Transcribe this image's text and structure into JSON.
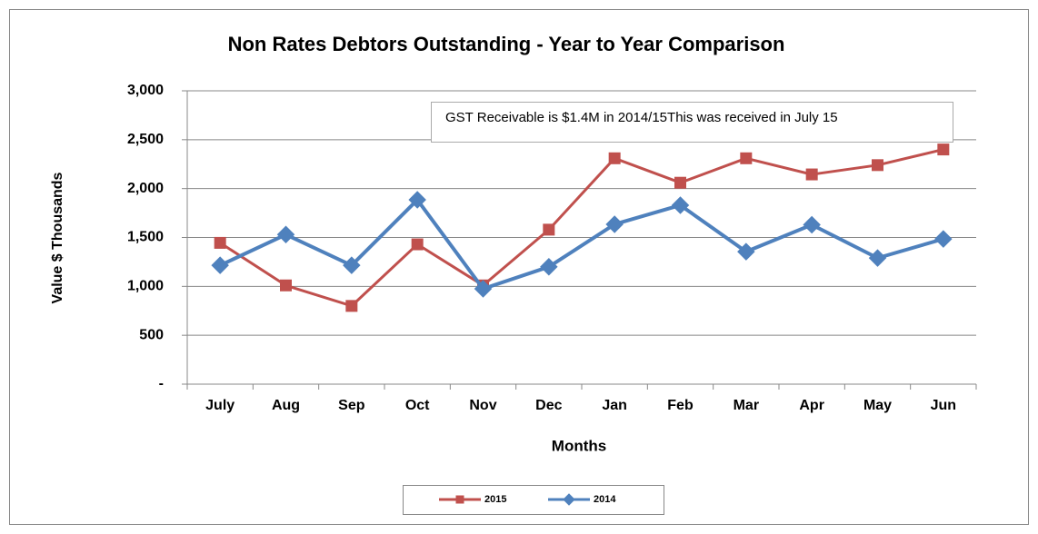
{
  "chart_data": {
    "type": "line",
    "title": "Non Rates Debtors Outstanding - Year to Year Comparison",
    "x_label": "Months",
    "y_label": "Value $ Thousands",
    "annotation": "GST Receivable is $1.4M in 2014/15This was received in  July 15",
    "categories": [
      "July",
      "Aug",
      "Sep",
      "Oct",
      "Nov",
      "Dec",
      "Jan",
      "Feb",
      "Mar",
      "Apr",
      "May",
      "Jun"
    ],
    "series": [
      {
        "name": "2015",
        "color": "#c0504d",
        "marker": "square",
        "values": [
          1445,
          1010,
          800,
          1430,
          1010,
          1580,
          2310,
          2060,
          2310,
          2145,
          2240,
          2400
        ]
      },
      {
        "name": "2014",
        "color": "#4f81bd",
        "marker": "diamond",
        "values": [
          1215,
          1530,
          1215,
          1885,
          975,
          1200,
          1635,
          1830,
          1355,
          1630,
          1290,
          1485
        ]
      }
    ],
    "ylim": [
      0,
      3000
    ],
    "yticks": [
      {
        "value": 0,
        "label": "-"
      },
      500,
      {
        "value": 1000,
        "label": "1,000"
      },
      {
        "value": 1500,
        "label": "1,500"
      },
      {
        "value": 2000,
        "label": "2,000"
      },
      {
        "value": 2500,
        "label": "2,500"
      },
      {
        "value": 3000,
        "label": "3,000"
      }
    ],
    "grid": true,
    "legend": "bottom"
  }
}
